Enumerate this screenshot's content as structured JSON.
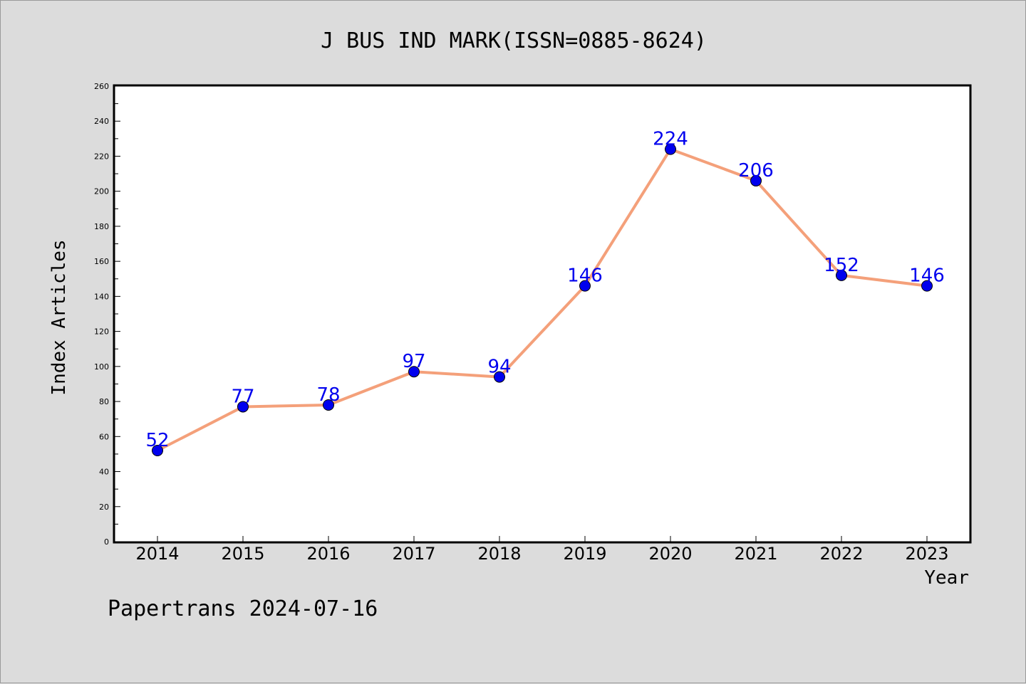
{
  "chart_data": {
    "type": "line",
    "title": "J BUS IND MARK(ISSN=0885-8624)",
    "xlabel": "Year",
    "ylabel": "Index Articles",
    "categories": [
      "2014",
      "2015",
      "2016",
      "2017",
      "2018",
      "2019",
      "2020",
      "2021",
      "2022",
      "2023"
    ],
    "series": [
      {
        "values": [
          52,
          77,
          78,
          97,
          94,
          146,
          224,
          206,
          152,
          146
        ]
      }
    ],
    "data_labels": [
      "52",
      "77",
      "78",
      "97",
      "94",
      "146",
      "224",
      "206",
      "152",
      "146"
    ],
    "ylim": [
      0,
      260
    ],
    "yticks": [
      "0",
      "20",
      "40",
      "60",
      "80",
      "100",
      "120",
      "140",
      "160",
      "180",
      "200",
      "220",
      "240",
      "260"
    ],
    "grid": false,
    "colors": {
      "line": "#f4a07a",
      "marker": "#0000ee",
      "data_label": "#0000ee",
      "plot_background": "#ffffff",
      "page_background": "#dcdcdc"
    }
  },
  "footer": "Papertrans 2024-07-16"
}
